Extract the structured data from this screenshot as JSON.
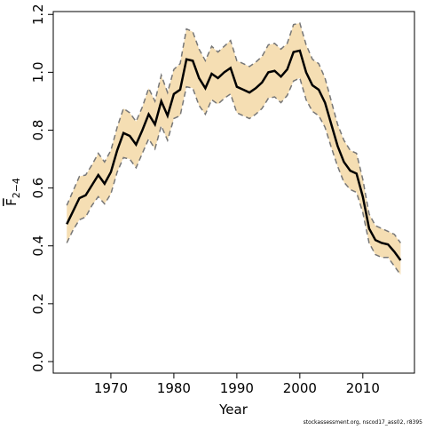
{
  "chart_data": {
    "type": "line",
    "xlabel": "Year",
    "ylabel": "F",
    "ylabel_sub": "2−4",
    "footnote": "stockassessment.org, nscod17_ass02, r8395",
    "x": [
      1963,
      1964,
      1965,
      1966,
      1967,
      1968,
      1969,
      1970,
      1971,
      1972,
      1973,
      1974,
      1975,
      1976,
      1977,
      1978,
      1979,
      1980,
      1981,
      1982,
      1983,
      1984,
      1985,
      1986,
      1987,
      1988,
      1989,
      1990,
      1991,
      1992,
      1993,
      1994,
      1995,
      1996,
      1997,
      1998,
      1999,
      2000,
      2001,
      2002,
      2003,
      2004,
      2005,
      2006,
      2007,
      2008,
      2009,
      2010,
      2011,
      2012,
      2013,
      2014,
      2015,
      2016
    ],
    "series": [
      {
        "color": "#000000",
        "values": [
          0.475,
          0.52,
          0.565,
          0.575,
          0.61,
          0.645,
          0.615,
          0.655,
          0.73,
          0.79,
          0.78,
          0.75,
          0.8,
          0.855,
          0.82,
          0.9,
          0.85,
          0.925,
          0.94,
          1.045,
          1.04,
          0.98,
          0.945,
          0.995,
          0.98,
          1.0,
          1.015,
          0.95,
          0.94,
          0.93,
          0.945,
          0.965,
          1.0,
          1.005,
          0.985,
          1.01,
          1.07,
          1.075,
          1.0,
          0.955,
          0.94,
          0.895,
          0.82,
          0.745,
          0.69,
          0.66,
          0.65,
          0.57,
          0.46,
          0.42,
          0.41,
          0.405,
          0.38,
          0.35
        ]
      },
      {
        "color": "#777777",
        "values": [
          0.54,
          0.59,
          0.64,
          0.645,
          0.68,
          0.72,
          0.69,
          0.73,
          0.81,
          0.875,
          0.86,
          0.83,
          0.88,
          0.945,
          0.9,
          0.99,
          0.93,
          1.01,
          1.03,
          1.15,
          1.14,
          1.08,
          1.04,
          1.09,
          1.07,
          1.09,
          1.11,
          1.04,
          1.03,
          1.02,
          1.035,
          1.055,
          1.095,
          1.1,
          1.08,
          1.1,
          1.165,
          1.17,
          1.095,
          1.045,
          1.03,
          0.98,
          0.9,
          0.82,
          0.765,
          0.73,
          0.72,
          0.63,
          0.51,
          0.47,
          0.46,
          0.45,
          0.44,
          0.41
        ]
      },
      {
        "color": "#777777",
        "values": [
          0.41,
          0.455,
          0.49,
          0.5,
          0.54,
          0.57,
          0.545,
          0.58,
          0.655,
          0.705,
          0.7,
          0.67,
          0.72,
          0.77,
          0.735,
          0.815,
          0.765,
          0.84,
          0.85,
          0.95,
          0.945,
          0.885,
          0.855,
          0.905,
          0.89,
          0.91,
          0.925,
          0.86,
          0.85,
          0.84,
          0.855,
          0.875,
          0.91,
          0.915,
          0.895,
          0.92,
          0.97,
          0.98,
          0.905,
          0.865,
          0.85,
          0.81,
          0.74,
          0.675,
          0.62,
          0.595,
          0.585,
          0.515,
          0.41,
          0.37,
          0.36,
          0.36,
          0.33,
          0.3
        ]
      }
    ],
    "band_color": "#f5deb3",
    "xlim": [
      1960.85,
      2018.2
    ],
    "ylim": [
      -0.04,
      1.21
    ],
    "xticks": [
      1970,
      1980,
      1990,
      2000,
      2010
    ],
    "yticks": [
      {
        "value": 0,
        "label": "0.0"
      },
      0.2,
      0.4,
      0.6,
      0.8,
      {
        "value": 1,
        "label": "1.0"
      },
      1.2
    ]
  }
}
